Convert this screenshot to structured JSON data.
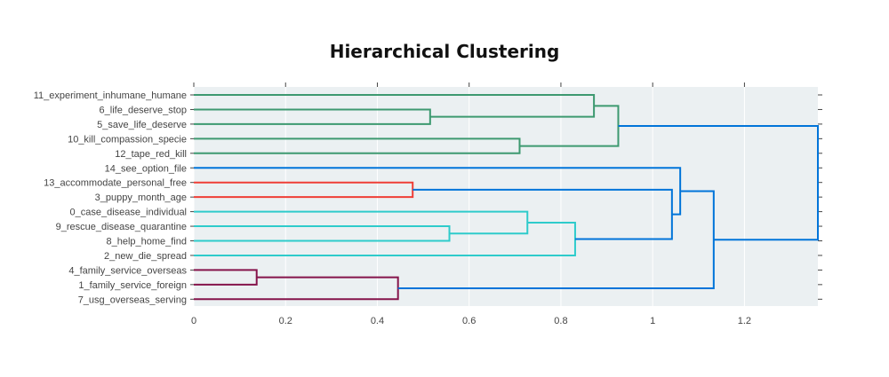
{
  "chart_data": {
    "type": "dendrogram",
    "title": "Hierarchical Clustering",
    "xlabel": "",
    "ylabel": "",
    "xlim": [
      0,
      1.36
    ],
    "x_ticks": [
      0,
      0.2,
      0.4,
      0.6,
      0.8,
      1,
      1.2
    ],
    "x_tick_labels": [
      "0",
      "0.2",
      "0.4",
      "0.6",
      "0.8",
      "1",
      "1.2"
    ],
    "grid": true,
    "leaves": [
      "11_experiment_inhumane_humane",
      "6_life_deserve_stop",
      "5_save_life_deserve",
      "10_kill_compassion_specie",
      "12_tape_red_kill",
      "14_see_option_file",
      "13_accommodate_personal_free",
      "3_puppy_month_age",
      "0_case_disease_individual",
      "9_rescue_disease_quarantine",
      "8_help_home_find",
      "2_new_die_spread",
      "4_family_service_overseas",
      "1_family_service_foreign",
      "7_usg_overseas_serving"
    ],
    "colors": {
      "green": "#3d9970",
      "red": "#ef3e36",
      "cyan": "#2ecbcb",
      "maroon": "#85144b",
      "blue": "#0074d9"
    },
    "merges": [
      {
        "id": "m1",
        "a": "L1",
        "b": "L2",
        "height": 0.515,
        "color": "green"
      },
      {
        "id": "m2",
        "a": "L0",
        "b": "m1",
        "height": 0.872,
        "color": "green"
      },
      {
        "id": "m3",
        "a": "L3",
        "b": "L4",
        "height": 0.71,
        "color": "green"
      },
      {
        "id": "m4",
        "a": "m2",
        "b": "m3",
        "height": 0.925,
        "color": "green"
      },
      {
        "id": "m5",
        "a": "L6",
        "b": "L7",
        "height": 0.477,
        "color": "red"
      },
      {
        "id": "m6",
        "a": "L9",
        "b": "L10",
        "height": 0.557,
        "color": "cyan"
      },
      {
        "id": "m7",
        "a": "L8",
        "b": "m6",
        "height": 0.727,
        "color": "cyan"
      },
      {
        "id": "m8",
        "a": "m7",
        "b": "L11",
        "height": 0.831,
        "color": "cyan"
      },
      {
        "id": "m9",
        "a": "m5",
        "b": "m8",
        "height": 1.042,
        "color": "blue"
      },
      {
        "id": "m10",
        "a": "L5",
        "b": "m9",
        "height": 1.06,
        "color": "blue"
      },
      {
        "id": "m11",
        "a": "L12",
        "b": "L13",
        "height": 0.137,
        "color": "maroon"
      },
      {
        "id": "m12",
        "a": "m11",
        "b": "L14",
        "height": 0.445,
        "color": "maroon"
      },
      {
        "id": "m13",
        "a": "m10",
        "b": "m12",
        "height": 1.133,
        "color": "blue"
      },
      {
        "id": "m14",
        "a": "m4",
        "b": "m13",
        "height": 1.36,
        "color": "blue"
      }
    ]
  }
}
